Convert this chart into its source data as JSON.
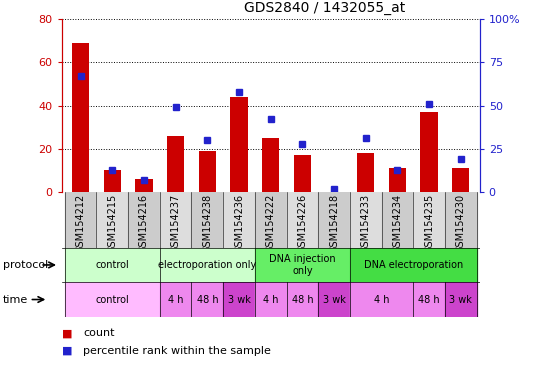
{
  "title": "GDS2840 / 1432055_at",
  "categories": [
    "GSM154212",
    "GSM154215",
    "GSM154216",
    "GSM154237",
    "GSM154238",
    "GSM154236",
    "GSM154222",
    "GSM154226",
    "GSM154218",
    "GSM154233",
    "GSM154234",
    "GSM154235",
    "GSM154230"
  ],
  "count_values": [
    69,
    10,
    6,
    26,
    19,
    44,
    25,
    17,
    0,
    18,
    11,
    37,
    11
  ],
  "percentile_values": [
    67,
    13,
    7,
    49,
    30,
    58,
    42,
    28,
    2,
    31,
    13,
    51,
    19
  ],
  "ylim_left": [
    0,
    80
  ],
  "ylim_right": [
    0,
    100
  ],
  "yticks_left": [
    0,
    20,
    40,
    60,
    80
  ],
  "yticks_right": [
    0,
    25,
    50,
    75,
    100
  ],
  "ytick_labels_left": [
    "0",
    "20",
    "40",
    "60",
    "80"
  ],
  "ytick_labels_right": [
    "0",
    "25",
    "50",
    "75",
    "100%"
  ],
  "bar_color": "#cc0000",
  "dot_color": "#2222cc",
  "protocol_data": [
    {
      "label": "control",
      "start": 0,
      "end": 3,
      "color": "#ccffcc"
    },
    {
      "label": "electroporation only",
      "start": 3,
      "end": 6,
      "color": "#ccffcc"
    },
    {
      "label": "DNA injection\nonly",
      "start": 6,
      "end": 9,
      "color": "#66ee66"
    },
    {
      "label": "DNA electroporation",
      "start": 9,
      "end": 13,
      "color": "#44dd44"
    }
  ],
  "time_data": [
    {
      "label": "control",
      "start": 0,
      "end": 3,
      "color": "#ffbbff"
    },
    {
      "label": "4 h",
      "start": 3,
      "end": 4,
      "color": "#ee88ee"
    },
    {
      "label": "48 h",
      "start": 4,
      "end": 5,
      "color": "#ee88ee"
    },
    {
      "label": "3 wk",
      "start": 5,
      "end": 6,
      "color": "#cc44cc"
    },
    {
      "label": "4 h",
      "start": 6,
      "end": 7,
      "color": "#ee88ee"
    },
    {
      "label": "48 h",
      "start": 7,
      "end": 8,
      "color": "#ee88ee"
    },
    {
      "label": "3 wk",
      "start": 8,
      "end": 9,
      "color": "#cc44cc"
    },
    {
      "label": "4 h",
      "start": 9,
      "end": 11,
      "color": "#ee88ee"
    },
    {
      "label": "48 h",
      "start": 11,
      "end": 12,
      "color": "#ee88ee"
    },
    {
      "label": "3 wk",
      "start": 12,
      "end": 13,
      "color": "#cc44cc"
    }
  ],
  "xtick_bg_even": "#cccccc",
  "xtick_bg_odd": "#dddddd",
  "bg_color": "#ffffff",
  "legend_count_label": "count",
  "legend_pct_label": "percentile rank within the sample"
}
